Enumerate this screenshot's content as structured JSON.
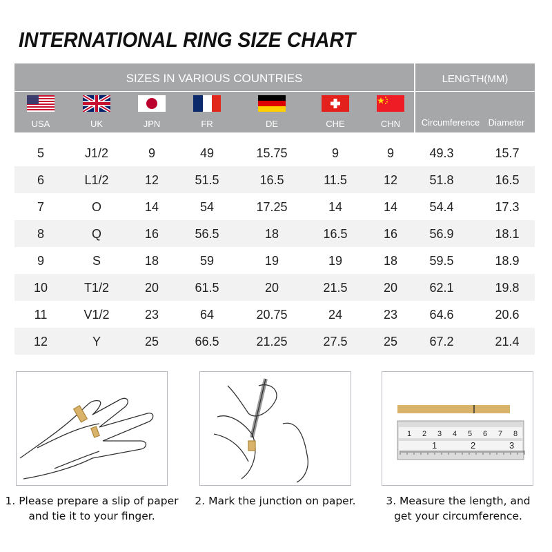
{
  "title": "INTERNATIONAL RING SIZE CHART",
  "header": {
    "sizes_label": "SIZES IN VARIOUS COUNTRIES",
    "length_label": "LENGTH(MM)",
    "countries": [
      {
        "code": "USA",
        "flag": "us-flag"
      },
      {
        "code": "UK",
        "flag": "uk-flag"
      },
      {
        "code": "JPN",
        "flag": "japan-flag"
      },
      {
        "code": "FR",
        "flag": "france-flag"
      },
      {
        "code": "DE",
        "flag": "germany-flag"
      },
      {
        "code": "CHE",
        "flag": "switzerland-flag"
      },
      {
        "code": "CHN",
        "flag": "china-flag"
      }
    ],
    "length_cols": [
      "Circumference",
      "Diameter"
    ]
  },
  "rows": [
    [
      "5",
      "J1/2",
      "9",
      "49",
      "15.75",
      "9",
      "9",
      "49.3",
      "15.7"
    ],
    [
      "6",
      "L1/2",
      "12",
      "51.5",
      "16.5",
      "11.5",
      "12",
      "51.8",
      "16.5"
    ],
    [
      "7",
      "O",
      "14",
      "54",
      "17.25",
      "14",
      "14",
      "54.4",
      "17.3"
    ],
    [
      "8",
      "Q",
      "16",
      "56.5",
      "18",
      "16.5",
      "16",
      "56.9",
      "18.1"
    ],
    [
      "9",
      "S",
      "18",
      "59",
      "19",
      "19",
      "18",
      "59.5",
      "18.9"
    ],
    [
      "10",
      "T1/2",
      "20",
      "61.5",
      "20",
      "21.5",
      "20",
      "62.1",
      "19.8"
    ],
    [
      "11",
      "V1/2",
      "23",
      "64",
      "20.75",
      "24",
      "23",
      "64.6",
      "20.6"
    ],
    [
      "12",
      "Y",
      "25",
      "66.5",
      "21.25",
      "27.5",
      "25",
      "67.2",
      "21.4"
    ]
  ],
  "steps": [
    {
      "line1": "1. Please prepare a slip of paper",
      "line2": "and tie it to your finger."
    },
    {
      "line1": "2. Mark the junction on paper.",
      "line2": ""
    },
    {
      "line1": "3. Measure the length, and",
      "line2": "get your circumference."
    }
  ],
  "ruler": {
    "top_ticks": [
      "1",
      "2",
      "3",
      "4",
      "5",
      "6",
      "7",
      "8"
    ],
    "bottom_ticks": [
      "1",
      "2",
      "3"
    ]
  },
  "colors": {
    "header_bg": "#a6a7a9",
    "alt_row": "#f2f2f2",
    "paper": "#d9b36a"
  }
}
